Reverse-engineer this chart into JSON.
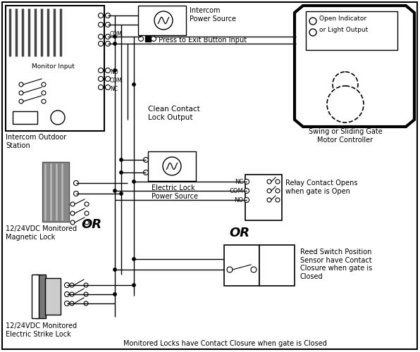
{
  "bg": "#ffffff",
  "lc": "#000000",
  "fig_w": 5.96,
  "fig_h": 5.0,
  "dpi": 100,
  "texts": {
    "intercom_ps": "Intercom\nPower Source",
    "press_exit": " Press to Exit Button Input",
    "monitor_input": "Monitor Input",
    "intercom_station": "Intercom Outdoor\nStation",
    "clean_contact": "Clean Contact\nLock Output",
    "elec_lock_ps": "Electric Lock\nPower Source",
    "mag_lock": "12/24VDC Monitored\nMagnetic Lock",
    "elec_strike": "12/24VDC Monitored\nElectric Strike Lock",
    "relay_contact": "Relay Contact Opens\nwhen gate is Open",
    "reed_switch": "Reed Switch Position\nSensor have Contact\nClosure when gate is\nClosed",
    "swing_gate": "Swing or Sliding Gate\nMotor Controller",
    "open_indicator": "Open Indicator\nor Light Output",
    "or1": "OR",
    "or2": "OR",
    "bottom_note": "Monitored Locks have Contact Closure when gate is Closed",
    "nc": "NC",
    "com": "COM",
    "no": "NO"
  }
}
